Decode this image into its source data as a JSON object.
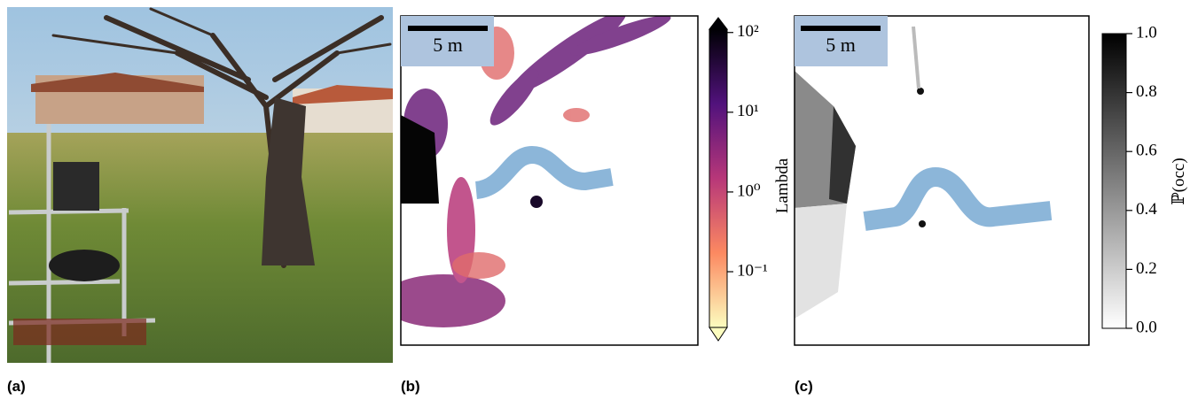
{
  "panels": [
    {
      "label": "(a)"
    },
    {
      "label": "(b)",
      "scale_bar": "5 m",
      "colorbar": {
        "title": "Lambda",
        "log_scale": true,
        "lim": [
          0.02,
          110
        ],
        "ticks": [
          {
            "value": 100,
            "label": "10²"
          },
          {
            "value": 10,
            "label": "10¹"
          },
          {
            "value": 1,
            "label": "10⁰"
          },
          {
            "value": 0.1,
            "label": "10⁻¹"
          }
        ]
      }
    },
    {
      "label": "(c)",
      "scale_bar": "5 m",
      "colorbar": {
        "title": "ℙ(occ)",
        "log_scale": false,
        "lim": [
          0,
          1
        ],
        "ticks": [
          {
            "value": 0,
            "label": "0.0"
          },
          {
            "value": 0.2,
            "label": "0.2"
          },
          {
            "value": 0.4,
            "label": "0.4"
          },
          {
            "value": 0.6,
            "label": "0.6"
          },
          {
            "value": 0.8,
            "label": "0.8"
          },
          {
            "value": 1,
            "label": "1.0"
          }
        ]
      }
    }
  ]
}
